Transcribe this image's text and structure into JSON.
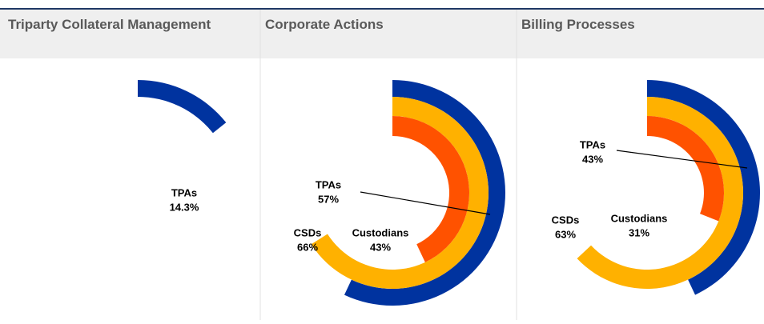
{
  "chart_data": [
    {
      "type": "radial_bar",
      "title": "Triparty Collateral Management",
      "categories": [
        "TPAs"
      ],
      "values": [
        14.3
      ],
      "value_labels": [
        "14.3%"
      ],
      "colors": [
        "#00339f"
      ]
    },
    {
      "type": "radial_bar",
      "title": "Corporate Actions",
      "categories": [
        "TPAs",
        "CSDs",
        "Custodians"
      ],
      "values": [
        57,
        66,
        43
      ],
      "value_labels": [
        "57%",
        "66%",
        "43%"
      ],
      "colors": [
        "#00339f",
        "#ffb100",
        "#ff5200"
      ]
    },
    {
      "type": "radial_bar",
      "title": "Billing Processes",
      "categories": [
        "TPAs",
        "CSDs",
        "Custodians"
      ],
      "values": [
        43,
        63,
        31
      ],
      "value_labels": [
        "43%",
        "63%",
        "31%"
      ],
      "colors": [
        "#00339f",
        "#ffb100",
        "#ff5200"
      ]
    }
  ]
}
